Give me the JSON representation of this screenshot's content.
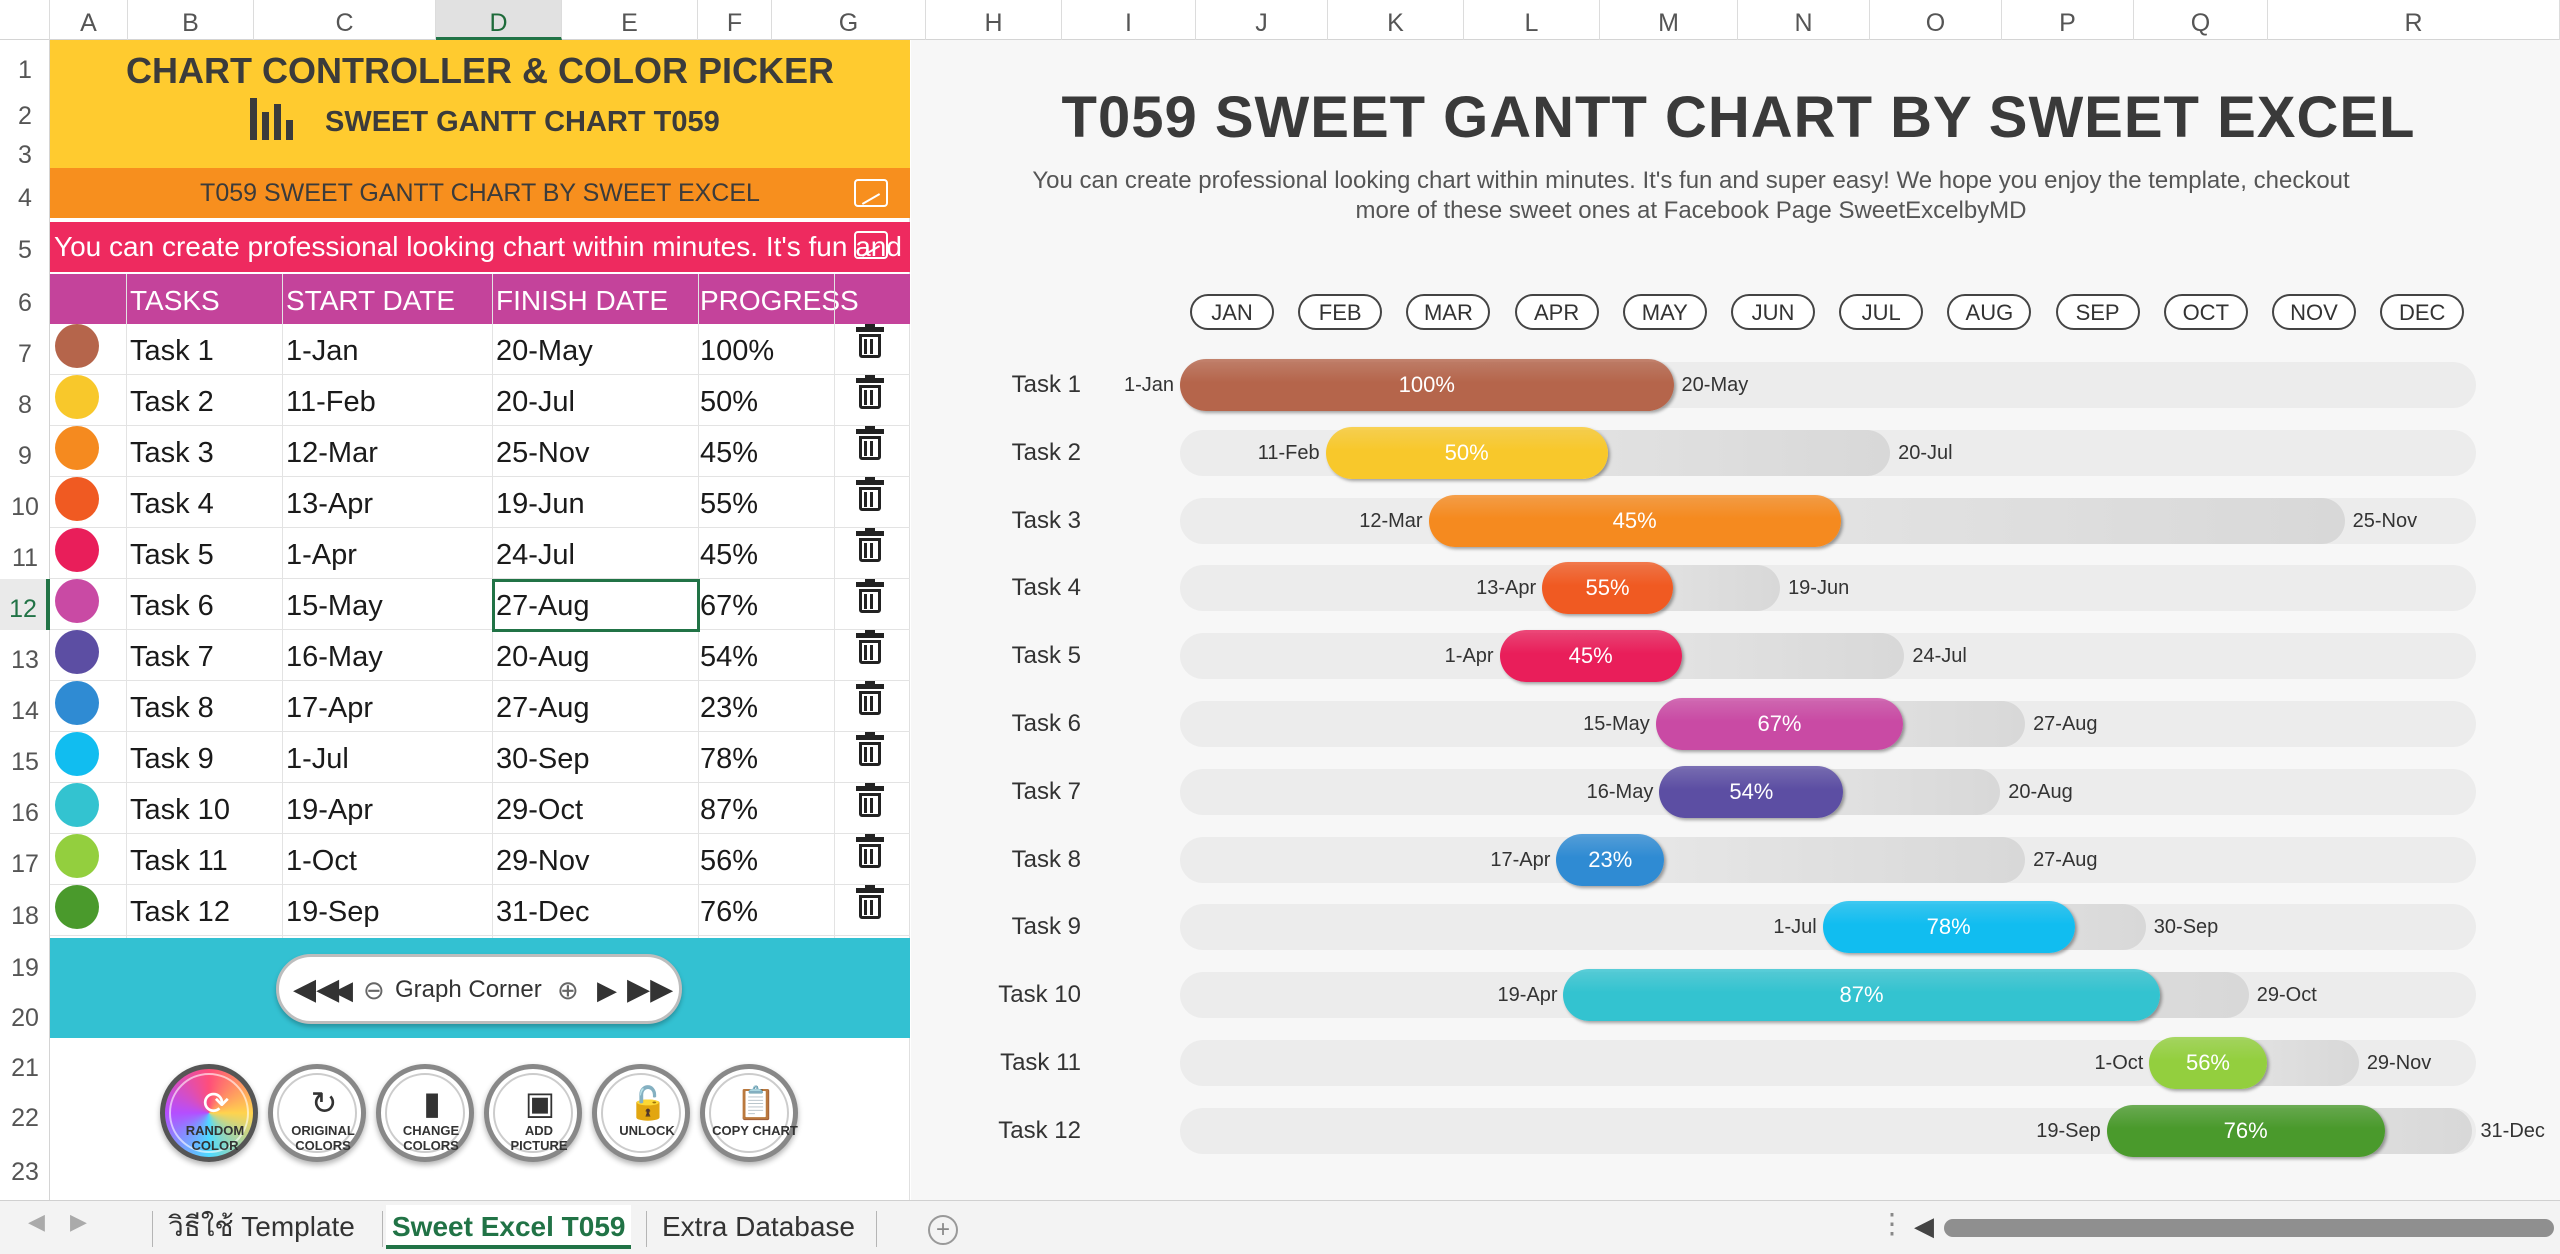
{
  "columns": [
    "A",
    "B",
    "C",
    "D",
    "E",
    "F",
    "G",
    "H",
    "I",
    "J",
    "K",
    "L",
    "M",
    "N",
    "O",
    "P",
    "Q",
    "R"
  ],
  "rows": [
    "1",
    "2",
    "3",
    "4",
    "5",
    "6",
    "7",
    "8",
    "9",
    "10",
    "11",
    "12",
    "13",
    "14",
    "15",
    "16",
    "17",
    "18",
    "19",
    "20",
    "21",
    "22",
    "23"
  ],
  "panel": {
    "title": "CHART CONTROLLER & COLOR PICKER",
    "subtitle": "SWEET GANTT CHART T059",
    "chart_title_cell": "T059 SWEET GANTT CHART BY SWEET EXCEL",
    "desc_cell": "You can create professional looking chart within minutes. It's fun and supe",
    "headers": [
      "TASKS",
      "START DATE",
      "FINISH DATE",
      "PROGRESS"
    ],
    "tasks": [
      {
        "name": "Task 1",
        "start": "1-Jan",
        "finish": "20-May",
        "progress": "100%",
        "color": "#b5654b"
      },
      {
        "name": "Task 2",
        "start": "11-Feb",
        "finish": "20-Jul",
        "progress": "50%",
        "color": "#f8c82b"
      },
      {
        "name": "Task 3",
        "start": "12-Mar",
        "finish": "25-Nov",
        "progress": "45%",
        "color": "#f58a1f"
      },
      {
        "name": "Task 4",
        "start": "13-Apr",
        "finish": "19-Jun",
        "progress": "55%",
        "color": "#f05a22"
      },
      {
        "name": "Task 5",
        "start": "1-Apr",
        "finish": "24-Jul",
        "progress": "45%",
        "color": "#e91e5a"
      },
      {
        "name": "Task 6",
        "start": "15-May",
        "finish": "27-Aug",
        "progress": "67%",
        "color": "#c94aa4"
      },
      {
        "name": "Task 7",
        "start": "16-May",
        "finish": "20-Aug",
        "progress": "54%",
        "color": "#5c4ea3"
      },
      {
        "name": "Task 8",
        "start": "17-Apr",
        "finish": "27-Aug",
        "progress": "23%",
        "color": "#2f8bd3"
      },
      {
        "name": "Task 9",
        "start": "1-Jul",
        "finish": "30-Sep",
        "progress": "78%",
        "color": "#11bdf0"
      },
      {
        "name": "Task 10",
        "start": "19-Apr",
        "finish": "29-Oct",
        "progress": "87%",
        "color": "#33c3d0"
      },
      {
        "name": "Task 11",
        "start": "1-Oct",
        "finish": "29-Nov",
        "progress": "56%",
        "color": "#93cf3e"
      },
      {
        "name": "Task 12",
        "start": "19-Sep",
        "finish": "31-Dec",
        "progress": "76%",
        "color": "#4a9a2c"
      }
    ],
    "graph_corner": "Graph Corner",
    "buttons": [
      {
        "label": "RANDOM COLOR",
        "icon": "refresh-icon"
      },
      {
        "label": "ORIGINAL COLORS",
        "icon": "reset-icon"
      },
      {
        "label": "CHANGE COLORS",
        "icon": "bars-icon"
      },
      {
        "label": "ADD PICTURE",
        "icon": "picture-icon"
      },
      {
        "label": "UNLOCK",
        "icon": "lock-icon"
      },
      {
        "label": "COPY CHART",
        "icon": "clipboard-icon"
      }
    ]
  },
  "chart": {
    "title": "T059 SWEET GANTT CHART BY SWEET EXCEL",
    "description": "You can create professional looking chart within minutes. It's fun and super easy! We hope you enjoy the template, checkout more of these sweet ones at Facebook Page SweetExcelbyMD",
    "months": [
      "JAN",
      "FEB",
      "MAR",
      "APR",
      "MAY",
      "JUN",
      "JUL",
      "AUG",
      "SEP",
      "OCT",
      "NOV",
      "DEC"
    ]
  },
  "chart_data": {
    "type": "gantt",
    "title": "T059 SWEET GANTT CHART BY SWEET EXCEL",
    "x_range_days": [
      1,
      365
    ],
    "tasks": [
      {
        "name": "Task 1",
        "start": "1-Jan",
        "finish": "20-May",
        "start_day": 1,
        "finish_day": 140,
        "progress": 1.0,
        "progress_label": "100%"
      },
      {
        "name": "Task 2",
        "start": "11-Feb",
        "finish": "20-Jul",
        "start_day": 42,
        "finish_day": 201,
        "progress": 0.5,
        "progress_label": "50%"
      },
      {
        "name": "Task 3",
        "start": "12-Mar",
        "finish": "25-Nov",
        "start_day": 71,
        "finish_day": 329,
        "progress": 0.45,
        "progress_label": "45%"
      },
      {
        "name": "Task 4",
        "start": "13-Apr",
        "finish": "19-Jun",
        "start_day": 103,
        "finish_day": 170,
        "progress": 0.55,
        "progress_label": "55%"
      },
      {
        "name": "Task 5",
        "start": "1-Apr",
        "finish": "24-Jul",
        "start_day": 91,
        "finish_day": 205,
        "progress": 0.45,
        "progress_label": "45%"
      },
      {
        "name": "Task 6",
        "start": "15-May",
        "finish": "27-Aug",
        "start_day": 135,
        "finish_day": 239,
        "progress": 0.67,
        "progress_label": "67%"
      },
      {
        "name": "Task 7",
        "start": "16-May",
        "finish": "20-Aug",
        "start_day": 136,
        "finish_day": 232,
        "progress": 0.54,
        "progress_label": "54%"
      },
      {
        "name": "Task 8",
        "start": "17-Apr",
        "finish": "27-Aug",
        "start_day": 107,
        "finish_day": 239,
        "progress": 0.23,
        "progress_label": "23%"
      },
      {
        "name": "Task 9",
        "start": "1-Jul",
        "finish": "30-Sep",
        "start_day": 182,
        "finish_day": 273,
        "progress": 0.78,
        "progress_label": "78%"
      },
      {
        "name": "Task 10",
        "start": "19-Apr",
        "finish": "29-Oct",
        "start_day": 109,
        "finish_day": 302,
        "progress": 0.87,
        "progress_label": "87%"
      },
      {
        "name": "Task 11",
        "start": "1-Oct",
        "finish": "29-Nov",
        "start_day": 274,
        "finish_day": 333,
        "progress": 0.56,
        "progress_label": "56%"
      },
      {
        "name": "Task 12",
        "start": "19-Sep",
        "finish": "31-Dec",
        "start_day": 262,
        "finish_day": 365,
        "progress": 0.76,
        "progress_label": "76%"
      }
    ]
  },
  "sheet_tabs": [
    {
      "label": "วิธีใช้ Template",
      "active": false
    },
    {
      "label": "Sweet Excel T059",
      "active": true
    },
    {
      "label": "Extra Database",
      "active": false
    }
  ],
  "selected_cell": "D12"
}
